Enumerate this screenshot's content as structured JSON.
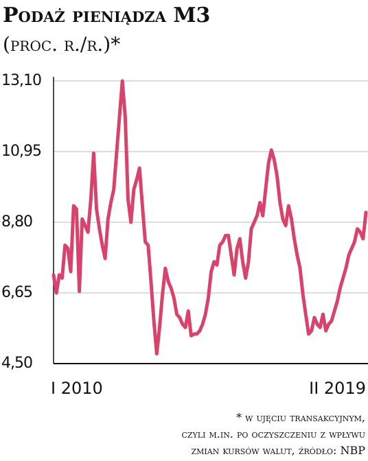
{
  "chart_data": {
    "type": "line",
    "title": "Podaż pieniądza M3",
    "subtitle": "(proc. r./r.)*",
    "footnote": [
      "* w ujęciu transakcyjnym,",
      "czyli m.in. po oczyszczeniu z wpływu",
      "zmian kursów walut, źródło: NBP"
    ],
    "categories": [
      "I 2010",
      null,
      null,
      null,
      null,
      null,
      null,
      null,
      null,
      null,
      null,
      null,
      null,
      null,
      null,
      null,
      null,
      null,
      null,
      null,
      null,
      null,
      null,
      null,
      null,
      null,
      null,
      null,
      null,
      null,
      null,
      null,
      null,
      null,
      null,
      null,
      null,
      null,
      null,
      null,
      null,
      null,
      null,
      null,
      null,
      null,
      null,
      null,
      null,
      null,
      null,
      null,
      null,
      null,
      null,
      null,
      null,
      null,
      null,
      null,
      null,
      null,
      null,
      null,
      null,
      null,
      null,
      null,
      null,
      null,
      null,
      null,
      null,
      null,
      null,
      null,
      null,
      null,
      null,
      null,
      null,
      null,
      null,
      null,
      null,
      null,
      null,
      null,
      null,
      null,
      null,
      null,
      null,
      null,
      null,
      null,
      null,
      null,
      null,
      null,
      null,
      null,
      null,
      null,
      null,
      null,
      null,
      null,
      null,
      "II 2019"
    ],
    "series": [
      {
        "name": "M3",
        "color": "#d9436b",
        "values": [
          7.2,
          6.65,
          7.2,
          7.1,
          8.1,
          8.0,
          7.3,
          9.3,
          9.2,
          6.7,
          8.9,
          8.7,
          8.5,
          9.5,
          10.9,
          9.2,
          8.6,
          8.1,
          7.7,
          8.9,
          9.4,
          9.8,
          10.9,
          12.0,
          13.1,
          12.0,
          9.5,
          8.8,
          9.8,
          10.1,
          10.45,
          9.3,
          8.2,
          8.1,
          7.0,
          5.8,
          4.8,
          5.6,
          6.6,
          7.4,
          7.0,
          6.8,
          6.5,
          6.0,
          5.9,
          5.7,
          5.6,
          6.1,
          5.35,
          5.4,
          5.4,
          5.5,
          5.7,
          6.0,
          6.5,
          7.3,
          7.6,
          7.5,
          8.1,
          8.2,
          8.4,
          8.4,
          7.8,
          7.2,
          8.0,
          8.3,
          7.6,
          7.1,
          7.6,
          8.6,
          8.8,
          9.0,
          9.4,
          9.0,
          9.8,
          10.6,
          11.0,
          10.7,
          10.2,
          9.4,
          8.9,
          8.7,
          9.3,
          8.9,
          8.3,
          7.8,
          7.4,
          6.6,
          6.0,
          5.4,
          5.5,
          5.9,
          5.7,
          5.6,
          6.0,
          5.5,
          5.7,
          5.8,
          6.1,
          6.4,
          6.8,
          7.1,
          7.4,
          7.8,
          8.0,
          8.2,
          8.6,
          8.5,
          8.3,
          9.1
        ]
      }
    ],
    "ylim": [
      4.5,
      13.1
    ],
    "yticks": [
      {
        "value": 4.5,
        "label": "4,50"
      },
      {
        "value": 6.65,
        "label": "6,65"
      },
      {
        "value": 8.8,
        "label": "8,80"
      },
      {
        "value": 10.95,
        "label": "10,95"
      },
      {
        "value": 13.1,
        "label": "13,10"
      }
    ],
    "grid": true
  }
}
